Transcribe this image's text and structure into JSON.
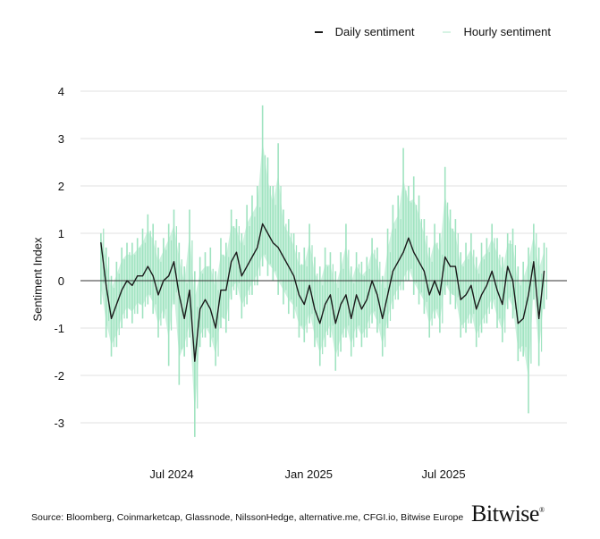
{
  "chart_data": {
    "type": "line",
    "title": "",
    "xlabel": "",
    "ylabel": "Sentiment Index",
    "ylim": [
      -3.5,
      4
    ],
    "yticks": [
      4,
      3,
      2,
      1,
      0,
      -1,
      -2,
      -3
    ],
    "xticks": [
      {
        "date": "2024-07-01",
        "label": "Jul 2024"
      },
      {
        "date": "2025-01-01",
        "label": "Jan 2025"
      },
      {
        "date": "2025-07-01",
        "label": "Jul 2025"
      }
    ],
    "grid": true,
    "legend_position": "top-right",
    "x": [
      "2024-03-28",
      "2024-04-04",
      "2024-04-11",
      "2024-04-18",
      "2024-04-25",
      "2024-05-02",
      "2024-05-09",
      "2024-05-16",
      "2024-05-23",
      "2024-05-30",
      "2024-06-06",
      "2024-06-13",
      "2024-06-20",
      "2024-06-27",
      "2024-07-04",
      "2024-07-11",
      "2024-07-18",
      "2024-07-25",
      "2024-08-01",
      "2024-08-08",
      "2024-08-15",
      "2024-08-22",
      "2024-08-29",
      "2024-09-05",
      "2024-09-12",
      "2024-09-19",
      "2024-09-26",
      "2024-10-03",
      "2024-10-10",
      "2024-10-17",
      "2024-10-24",
      "2024-10-31",
      "2024-11-07",
      "2024-11-14",
      "2024-11-21",
      "2024-11-28",
      "2024-12-05",
      "2024-12-12",
      "2024-12-19",
      "2024-12-26",
      "2025-01-02",
      "2025-01-09",
      "2025-01-16",
      "2025-01-23",
      "2025-01-30",
      "2025-02-06",
      "2025-02-13",
      "2025-02-20",
      "2025-02-27",
      "2025-03-06",
      "2025-03-13",
      "2025-03-20",
      "2025-03-27",
      "2025-04-03",
      "2025-04-10",
      "2025-04-17",
      "2025-04-24",
      "2025-05-01",
      "2025-05-08",
      "2025-05-15",
      "2025-05-22",
      "2025-05-29",
      "2025-06-05",
      "2025-06-12",
      "2025-06-19",
      "2025-06-26",
      "2025-07-03",
      "2025-07-10",
      "2025-07-17",
      "2025-07-24",
      "2025-07-31",
      "2025-08-07",
      "2025-08-14",
      "2025-08-21",
      "2025-08-28",
      "2025-09-04",
      "2025-09-11",
      "2025-09-18",
      "2025-09-25",
      "2025-10-02",
      "2025-10-09",
      "2025-10-16",
      "2025-10-23",
      "2025-10-30",
      "2025-11-06",
      "2025-11-13"
    ],
    "series": [
      {
        "name": "Daily sentiment",
        "color": "#1a1a1a",
        "values": [
          0.8,
          -0.1,
          -0.8,
          -0.5,
          -0.2,
          0.0,
          -0.1,
          0.1,
          0.1,
          0.3,
          0.1,
          -0.3,
          0.0,
          0.1,
          0.4,
          -0.3,
          -0.8,
          -0.2,
          -1.7,
          -0.6,
          -0.4,
          -0.6,
          -1.0,
          -0.2,
          -0.2,
          0.4,
          0.6,
          0.1,
          0.3,
          0.5,
          0.7,
          1.2,
          1.0,
          0.8,
          0.7,
          0.5,
          0.3,
          0.1,
          -0.3,
          -0.5,
          -0.1,
          -0.6,
          -0.9,
          -0.5,
          -0.3,
          -0.9,
          -0.5,
          -0.3,
          -0.8,
          -0.3,
          -0.6,
          -0.4,
          0.0,
          -0.3,
          -0.8,
          -0.3,
          0.2,
          0.4,
          0.6,
          0.9,
          0.6,
          0.4,
          0.2,
          -0.3,
          0.0,
          -0.3,
          0.5,
          0.3,
          0.3,
          -0.4,
          -0.3,
          -0.1,
          -0.6,
          -0.3,
          -0.1,
          0.2,
          -0.2,
          -0.5,
          0.3,
          0.0,
          -0.9,
          -0.8,
          -0.3,
          0.4,
          -0.8,
          0.2
        ]
      },
      {
        "name": "Hourly sentiment",
        "color": "#9fe3c0",
        "max": [
          1.0,
          0.7,
          0.1,
          0.4,
          0.7,
          0.8,
          0.8,
          0.9,
          1.1,
          1.4,
          1.2,
          0.7,
          0.9,
          1.2,
          1.5,
          0.8,
          0.3,
          1.5,
          0.2,
          0.5,
          0.6,
          0.7,
          0.2,
          0.9,
          0.8,
          1.5,
          1.3,
          1.0,
          1.6,
          1.8,
          2.0,
          3.7,
          2.6,
          2.0,
          2.9,
          1.5,
          1.3,
          1.0,
          0.6,
          0.7,
          1.2,
          0.5,
          0.3,
          0.7,
          0.6,
          0.2,
          0.6,
          1.2,
          0.3,
          0.6,
          0.4,
          0.5,
          0.9,
          0.7,
          0.1,
          1.1,
          1.6,
          1.8,
          2.8,
          2.0,
          2.2,
          1.8,
          1.3,
          0.7,
          1.2,
          1.0,
          2.4,
          1.5,
          1.3,
          0.6,
          0.8,
          1.0,
          0.5,
          0.8,
          0.9,
          1.2,
          0.9,
          0.5,
          1.0,
          1.1,
          0.3,
          0.4,
          0.7,
          1.2,
          0.7,
          0.8
        ],
        "min": [
          -0.5,
          -1.2,
          -1.6,
          -1.4,
          -1.0,
          -0.8,
          -0.9,
          -0.7,
          -0.8,
          -0.5,
          -0.7,
          -1.2,
          -0.8,
          -1.8,
          -0.5,
          -2.2,
          -1.6,
          -1.2,
          -3.3,
          -1.4,
          -1.2,
          -1.4,
          -1.8,
          -1.0,
          -1.1,
          -0.4,
          -0.3,
          -0.8,
          -0.5,
          -0.3,
          -0.1,
          0.3,
          0.1,
          0.0,
          -0.3,
          -0.5,
          -0.7,
          -0.8,
          -1.2,
          -1.3,
          -0.9,
          -1.4,
          -1.8,
          -1.4,
          -1.2,
          -1.9,
          -1.5,
          -1.2,
          -1.6,
          -1.2,
          -1.4,
          -1.2,
          -0.9,
          -1.1,
          -1.6,
          -1.0,
          -0.6,
          -0.4,
          -0.2,
          0.0,
          -0.3,
          -0.5,
          -0.7,
          -1.2,
          -0.8,
          -1.1,
          -0.3,
          -0.5,
          -0.6,
          -1.2,
          -1.1,
          -0.9,
          -1.4,
          -1.1,
          -0.9,
          -0.6,
          -1.0,
          -1.3,
          -0.6,
          -0.8,
          -1.7,
          -1.6,
          -2.8,
          -0.4,
          -1.8,
          -0.6
        ]
      }
    ]
  },
  "legend": {
    "daily": "Daily sentiment",
    "hourly": "Hourly sentiment"
  },
  "footer": {
    "source": "Source: Bloomberg, Coinmarketcap, Glassnode, NilssonHedge, alternative.me, CFGI.io, Bitwise Europe",
    "logo": "Bitwise"
  }
}
